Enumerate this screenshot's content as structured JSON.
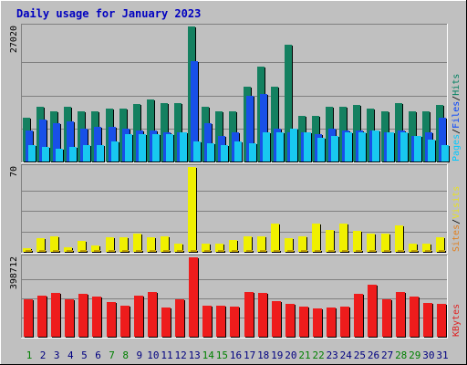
{
  "chart_data": {
    "type": "bar",
    "title": "Daily usage for January 2023",
    "categories": [
      "1",
      "2",
      "3",
      "4",
      "5",
      "6",
      "7",
      "8",
      "9",
      "10",
      "11",
      "12",
      "13",
      "14",
      "15",
      "16",
      "17",
      "18",
      "19",
      "20",
      "21",
      "22",
      "23",
      "24",
      "25",
      "26",
      "27",
      "28",
      "29",
      "30",
      "31"
    ],
    "weekend_days": [
      "1",
      "7",
      "8",
      "14",
      "15",
      "21",
      "22",
      "28",
      "29"
    ],
    "panels": [
      {
        "id": "hits",
        "ymax_label": "27020",
        "ymax": 27020,
        "legend": [
          {
            "text": "Pages",
            "color": "#00c8ff"
          },
          {
            "text": "/",
            "color": "#000000"
          },
          {
            "text": "Files",
            "color": "#0040ff"
          },
          {
            "text": "/",
            "color": "#000000"
          },
          {
            "text": "Hits",
            "color": "#008060"
          }
        ],
        "series": [
          {
            "name": "Hits",
            "color": "#148060",
            "values": [
              8780,
              11000,
              10100,
              11000,
              10100,
              10100,
              10600,
              10600,
              11550,
              12380,
              11690,
              11690,
              27020,
              11000,
              10100,
              10100,
              15060,
              19000,
              15060,
              23330,
              9150,
              9150,
              10900,
              10900,
              11360,
              10600,
              10100,
              11690,
              10100,
              10100,
              11360
            ]
          },
          {
            "name": "Files",
            "color": "#1850e8",
            "values": [
              6220,
              8410,
              7680,
              8050,
              6590,
              6950,
              6950,
              6590,
              6220,
              6220,
              5850,
              5850,
              20080,
              7680,
              5120,
              5850,
              13170,
              13530,
              6590,
              5850,
              5850,
              5490,
              6590,
              6220,
              6220,
              6220,
              5850,
              6220,
              5120,
              5850,
              8780
            ]
          },
          {
            "name": "Pages",
            "color": "#18c8f0",
            "values": [
              3290,
              2930,
              2560,
              2930,
              3290,
              3290,
              4020,
              5490,
              5490,
              5490,
              5490,
              5850,
              4020,
              3660,
              3290,
              4020,
              3660,
              5850,
              5850,
              6590,
              5850,
              4750,
              5120,
              5850,
              5850,
              6220,
              5850,
              5850,
              5120,
              4380,
              3290
            ]
          }
        ]
      },
      {
        "id": "visits",
        "ymax_label": "70",
        "ymax": 70,
        "legend": [
          {
            "text": "Sites",
            "color": "#e08020"
          },
          {
            "text": "/",
            "color": "#000000"
          },
          {
            "text": "Visits",
            "color": "#e8e020"
          }
        ],
        "series": [
          {
            "name": "Visits",
            "color": "#f0f000",
            "values": [
              3,
              11,
              13,
              4,
              9,
              5,
              12,
              12,
              15,
              12,
              13,
              7,
              70,
              7,
              7,
              10,
              13,
              13,
              23,
              11,
              13,
              23,
              18,
              23,
              17,
              15,
              15,
              22,
              7,
              7,
              12
            ]
          },
          {
            "name": "Sites",
            "color": "#c0a000",
            "values": [
              1,
              1,
              1,
              1,
              1,
              1,
              1,
              1,
              1,
              1,
              1,
              1,
              1,
              1,
              1,
              1,
              1,
              1,
              1,
              1,
              1,
              1,
              1,
              1,
              1,
              1,
              1,
              1,
              1,
              1,
              1
            ]
          }
        ]
      },
      {
        "id": "kbytes",
        "ymax_label": "398712",
        "ymax": 398712,
        "legend": [
          {
            "text": "KBytes",
            "color": "#e02020"
          }
        ],
        "series": [
          {
            "name": "KBytes",
            "color": "#ee1c1c",
            "values": [
              189000,
              208000,
              222000,
              190000,
              214000,
              203000,
              176000,
              157000,
              208000,
              225000,
              145000,
              187000,
              398712,
              155000,
              158000,
              149000,
              224000,
              220000,
              177000,
              167000,
              153000,
              144000,
              146000,
              150000,
              215000,
              263000,
              187000,
              226000,
              201000,
              169000,
              164000
            ]
          }
        ]
      }
    ]
  }
}
